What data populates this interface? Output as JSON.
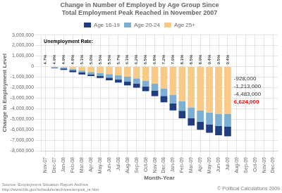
{
  "chart_data": {
    "type": "bar",
    "stacked": true,
    "title": "Change in Number of Employed by Age Group Since\nTotal Employment Peak Reached in November 2007",
    "xlabel": "Month-Year",
    "ylabel": "Change in Employment Level",
    "categories": [
      "Nov-07",
      "Dec-07",
      "Jan-08",
      "Feb-08",
      "Mar-08",
      "Apr-08",
      "May-08",
      "Jun-08",
      "Jul-08",
      "Aug-08",
      "Sep-08",
      "Oct-08",
      "Nov-08",
      "Dec-08",
      "Jan-09",
      "Feb-09",
      "Mar-09",
      "Apr-09",
      "May-09",
      "Jun-09",
      "Jul-09",
      "Aug-09",
      "Sep-09",
      "Oct-09",
      "Nov-09",
      "Dec-09"
    ],
    "series": [
      {
        "name": "Age 25+",
        "color": "#F9C987",
        "values": [
          0,
          -60000,
          -95000,
          -215000,
          -380000,
          -520000,
          -620000,
          -730000,
          -840000,
          -980000,
          -1130000,
          -1340000,
          -1650000,
          -2070000,
          -2680000,
          -3280000,
          -3880000,
          -4180000,
          -4370000,
          -4483000,
          -4483000,
          0,
          0,
          0,
          0,
          0
        ]
      },
      {
        "name": "Age 20-24",
        "color": "#7BAFD4",
        "values": [
          0,
          -54000,
          -90000,
          -145000,
          -190000,
          -215000,
          -258000,
          -320000,
          -378000,
          -430000,
          -478000,
          -550000,
          -628000,
          -720000,
          -822000,
          -924000,
          -998000,
          -1065000,
          -1115000,
          -1168000,
          -1213000,
          0,
          0,
          0,
          0,
          0
        ]
      },
      {
        "name": "Age 16-19",
        "color": "#1F3D80",
        "values": [
          0,
          -57000,
          -143000,
          -177000,
          -188000,
          -175000,
          -208000,
          -264000,
          -305000,
          -385000,
          -400000,
          -461000,
          -528000,
          -600000,
          -667000,
          -720000,
          -735000,
          -768000,
          -808000,
          -870000,
          -928000,
          0,
          0,
          0,
          0,
          0
        ]
      }
    ],
    "ylim": [
      -8000000,
      3000000
    ],
    "yticks": [
      {
        "value": -8000000,
        "label": "-8,000,000"
      },
      {
        "value": -7000000,
        "label": "-7,000,000"
      },
      {
        "value": -6000000,
        "label": "-6,000,000"
      },
      {
        "value": -5000000,
        "label": "-5,000,000"
      },
      {
        "value": -4000000,
        "label": "-4,000,000"
      },
      {
        "value": -3000000,
        "label": "-3,000,000"
      },
      {
        "value": -2000000,
        "label": "-2,000,000"
      },
      {
        "value": -1000000,
        "label": "-1,000,000"
      },
      0,
      {
        "value": 1000000,
        "label": "1,000,000"
      },
      {
        "value": 2000000,
        "label": "2,000,000"
      },
      {
        "value": 3000000,
        "label": "3,000,000"
      }
    ],
    "grid": true,
    "legend": "top",
    "rate_heading": "Unemployment Rate:",
    "rate_labels": [
      "4.7%",
      "4.9%",
      "4.9%",
      "4.8%",
      "5.1%",
      "5.0%",
      "5.5%",
      "5.5%",
      "5.7%",
      "6.1%",
      "6.2%",
      "6.5%",
      "6.8%",
      "7.2%",
      "7.6%",
      "8.1%",
      "8.5%",
      "8.9%",
      "9.4%",
      "9.5%",
      "9.4%",
      null,
      null,
      null,
      null,
      null
    ],
    "annotations": [
      {
        "text": "-928,000"
      },
      {
        "text": "-1,213,000"
      },
      {
        "text": "-4,483,000"
      },
      {
        "text": "6,624,000",
        "color": "red"
      }
    ],
    "source": "Source: Employment Situation Report Archive\nhttp://www.bls.gov/schedule/archives/empsit_nr.htm",
    "copyright": "© Political Calculations 2009"
  }
}
